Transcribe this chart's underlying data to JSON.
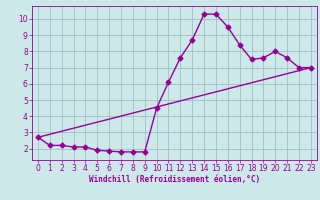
{
  "xlabel": "Windchill (Refroidissement éolien,°C)",
  "bg_color": "#cce8e8",
  "line_color": "#990099",
  "grid_color": "#99b8b8",
  "curve_x": [
    0,
    1,
    2,
    3,
    4,
    5,
    6,
    7,
    8,
    9,
    10,
    11,
    12,
    13,
    14,
    15,
    16,
    17,
    18,
    19,
    20,
    21,
    22,
    23
  ],
  "curve_y": [
    2.7,
    2.2,
    2.2,
    2.1,
    2.1,
    1.9,
    1.85,
    1.8,
    1.8,
    1.8,
    4.5,
    6.1,
    7.6,
    8.7,
    10.3,
    10.3,
    9.5,
    8.4,
    7.5,
    7.6,
    8.0,
    7.6,
    7.0,
    7.0
  ],
  "line_x": [
    0,
    23
  ],
  "line_y": [
    2.7,
    7.0
  ],
  "ylim": [
    1.3,
    10.8
  ],
  "xlim": [
    -0.5,
    23.5
  ],
  "yticks": [
    2,
    3,
    4,
    5,
    6,
    7,
    8,
    9,
    10
  ],
  "xticks": [
    0,
    1,
    2,
    3,
    4,
    5,
    6,
    7,
    8,
    9,
    10,
    11,
    12,
    13,
    14,
    15,
    16,
    17,
    18,
    19,
    20,
    21,
    22,
    23
  ],
  "marker": "D",
  "markersize": 2.5,
  "linewidth": 1.0,
  "tick_fontsize": 5.5,
  "xlabel_fontsize": 5.5
}
